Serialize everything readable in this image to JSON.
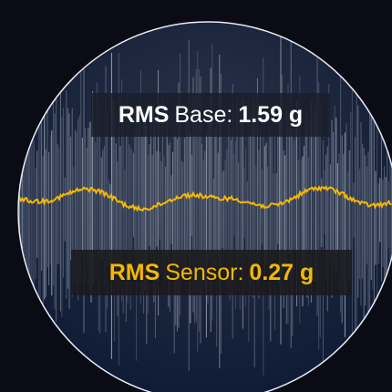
{
  "labels": {
    "base": {
      "prefix": "RMS",
      "name": "Base:",
      "value": "1.59 g"
    },
    "sensor": {
      "prefix": "RMS",
      "name": "Sensor:",
      "value": "0.27 g"
    }
  }
}
